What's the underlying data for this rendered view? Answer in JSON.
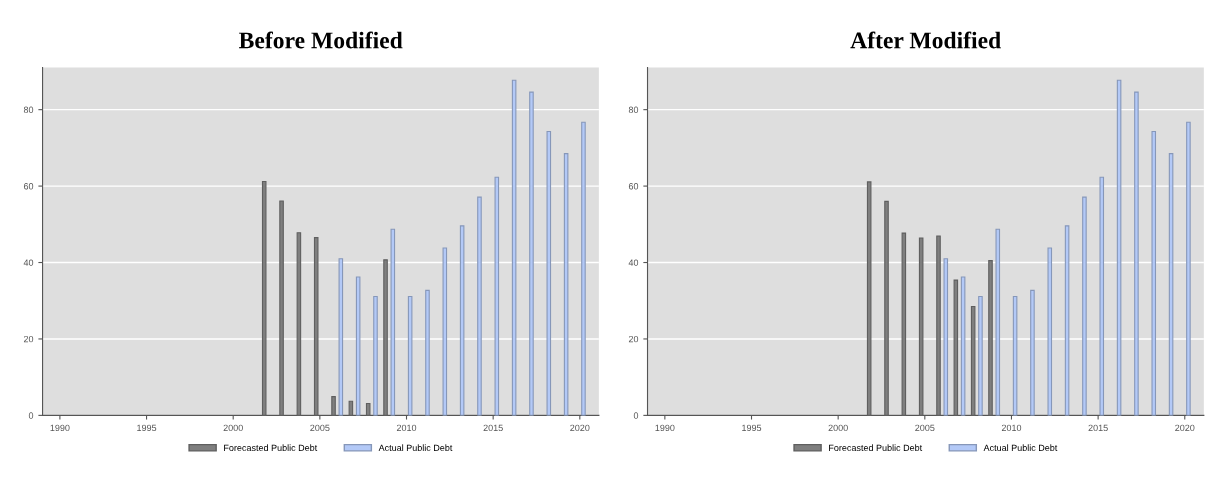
{
  "chart_data": [
    {
      "type": "bar",
      "title": "Before Modified",
      "xlim": [
        1989,
        2021.1
      ],
      "xticks": [
        1990,
        1995,
        2000,
        2005,
        2010,
        2015,
        2020
      ],
      "ylim": [
        0,
        91
      ],
      "yticks": [
        0,
        20,
        40,
        60,
        80
      ],
      "grid": "y",
      "legend": "bottom",
      "series": [
        {
          "name": "Forecasted Public Debt",
          "color": "#7f7f7f",
          "x": [
            2002,
            2003,
            2004,
            2005,
            2006,
            2007,
            2008,
            2009
          ],
          "values": [
            61.2,
            56.1,
            47.8,
            46.5,
            4.9,
            3.7,
            3.1,
            40.7
          ]
        },
        {
          "name": "Actual Public Debt",
          "color": "#b3c9f7",
          "x": [
            2006,
            2007,
            2008,
            2009,
            2010,
            2011,
            2012,
            2013,
            2014,
            2015,
            2016,
            2017,
            2018,
            2019,
            2020
          ],
          "values": [
            41.0,
            36.2,
            31.1,
            48.7,
            31.1,
            32.7,
            43.8,
            49.6,
            57.1,
            62.3,
            87.7,
            84.6,
            74.3,
            68.5,
            76.7
          ]
        }
      ]
    },
    {
      "type": "bar",
      "title": "After Modified",
      "xlim": [
        1989,
        2021.1
      ],
      "xticks": [
        1990,
        1995,
        2000,
        2005,
        2010,
        2015,
        2020
      ],
      "ylim": [
        0,
        91
      ],
      "yticks": [
        0,
        20,
        40,
        60,
        80
      ],
      "grid": "y",
      "legend": "bottom",
      "series": [
        {
          "name": "Forecasted Public Debt",
          "color": "#7f7f7f",
          "x": [
            2002,
            2003,
            2004,
            2005,
            2006,
            2007,
            2008,
            2009
          ],
          "values": [
            61.1,
            56.0,
            47.7,
            46.4,
            46.9,
            35.4,
            28.5,
            40.5
          ]
        },
        {
          "name": "Actual Public Debt",
          "color": "#b3c9f7",
          "x": [
            2006,
            2007,
            2008,
            2009,
            2010,
            2011,
            2012,
            2013,
            2014,
            2015,
            2016,
            2017,
            2018,
            2019,
            2020
          ],
          "values": [
            41.0,
            36.2,
            31.1,
            48.7,
            31.1,
            32.7,
            43.8,
            49.6,
            57.1,
            62.3,
            87.7,
            84.6,
            74.3,
            68.5,
            76.7
          ]
        }
      ]
    }
  ]
}
